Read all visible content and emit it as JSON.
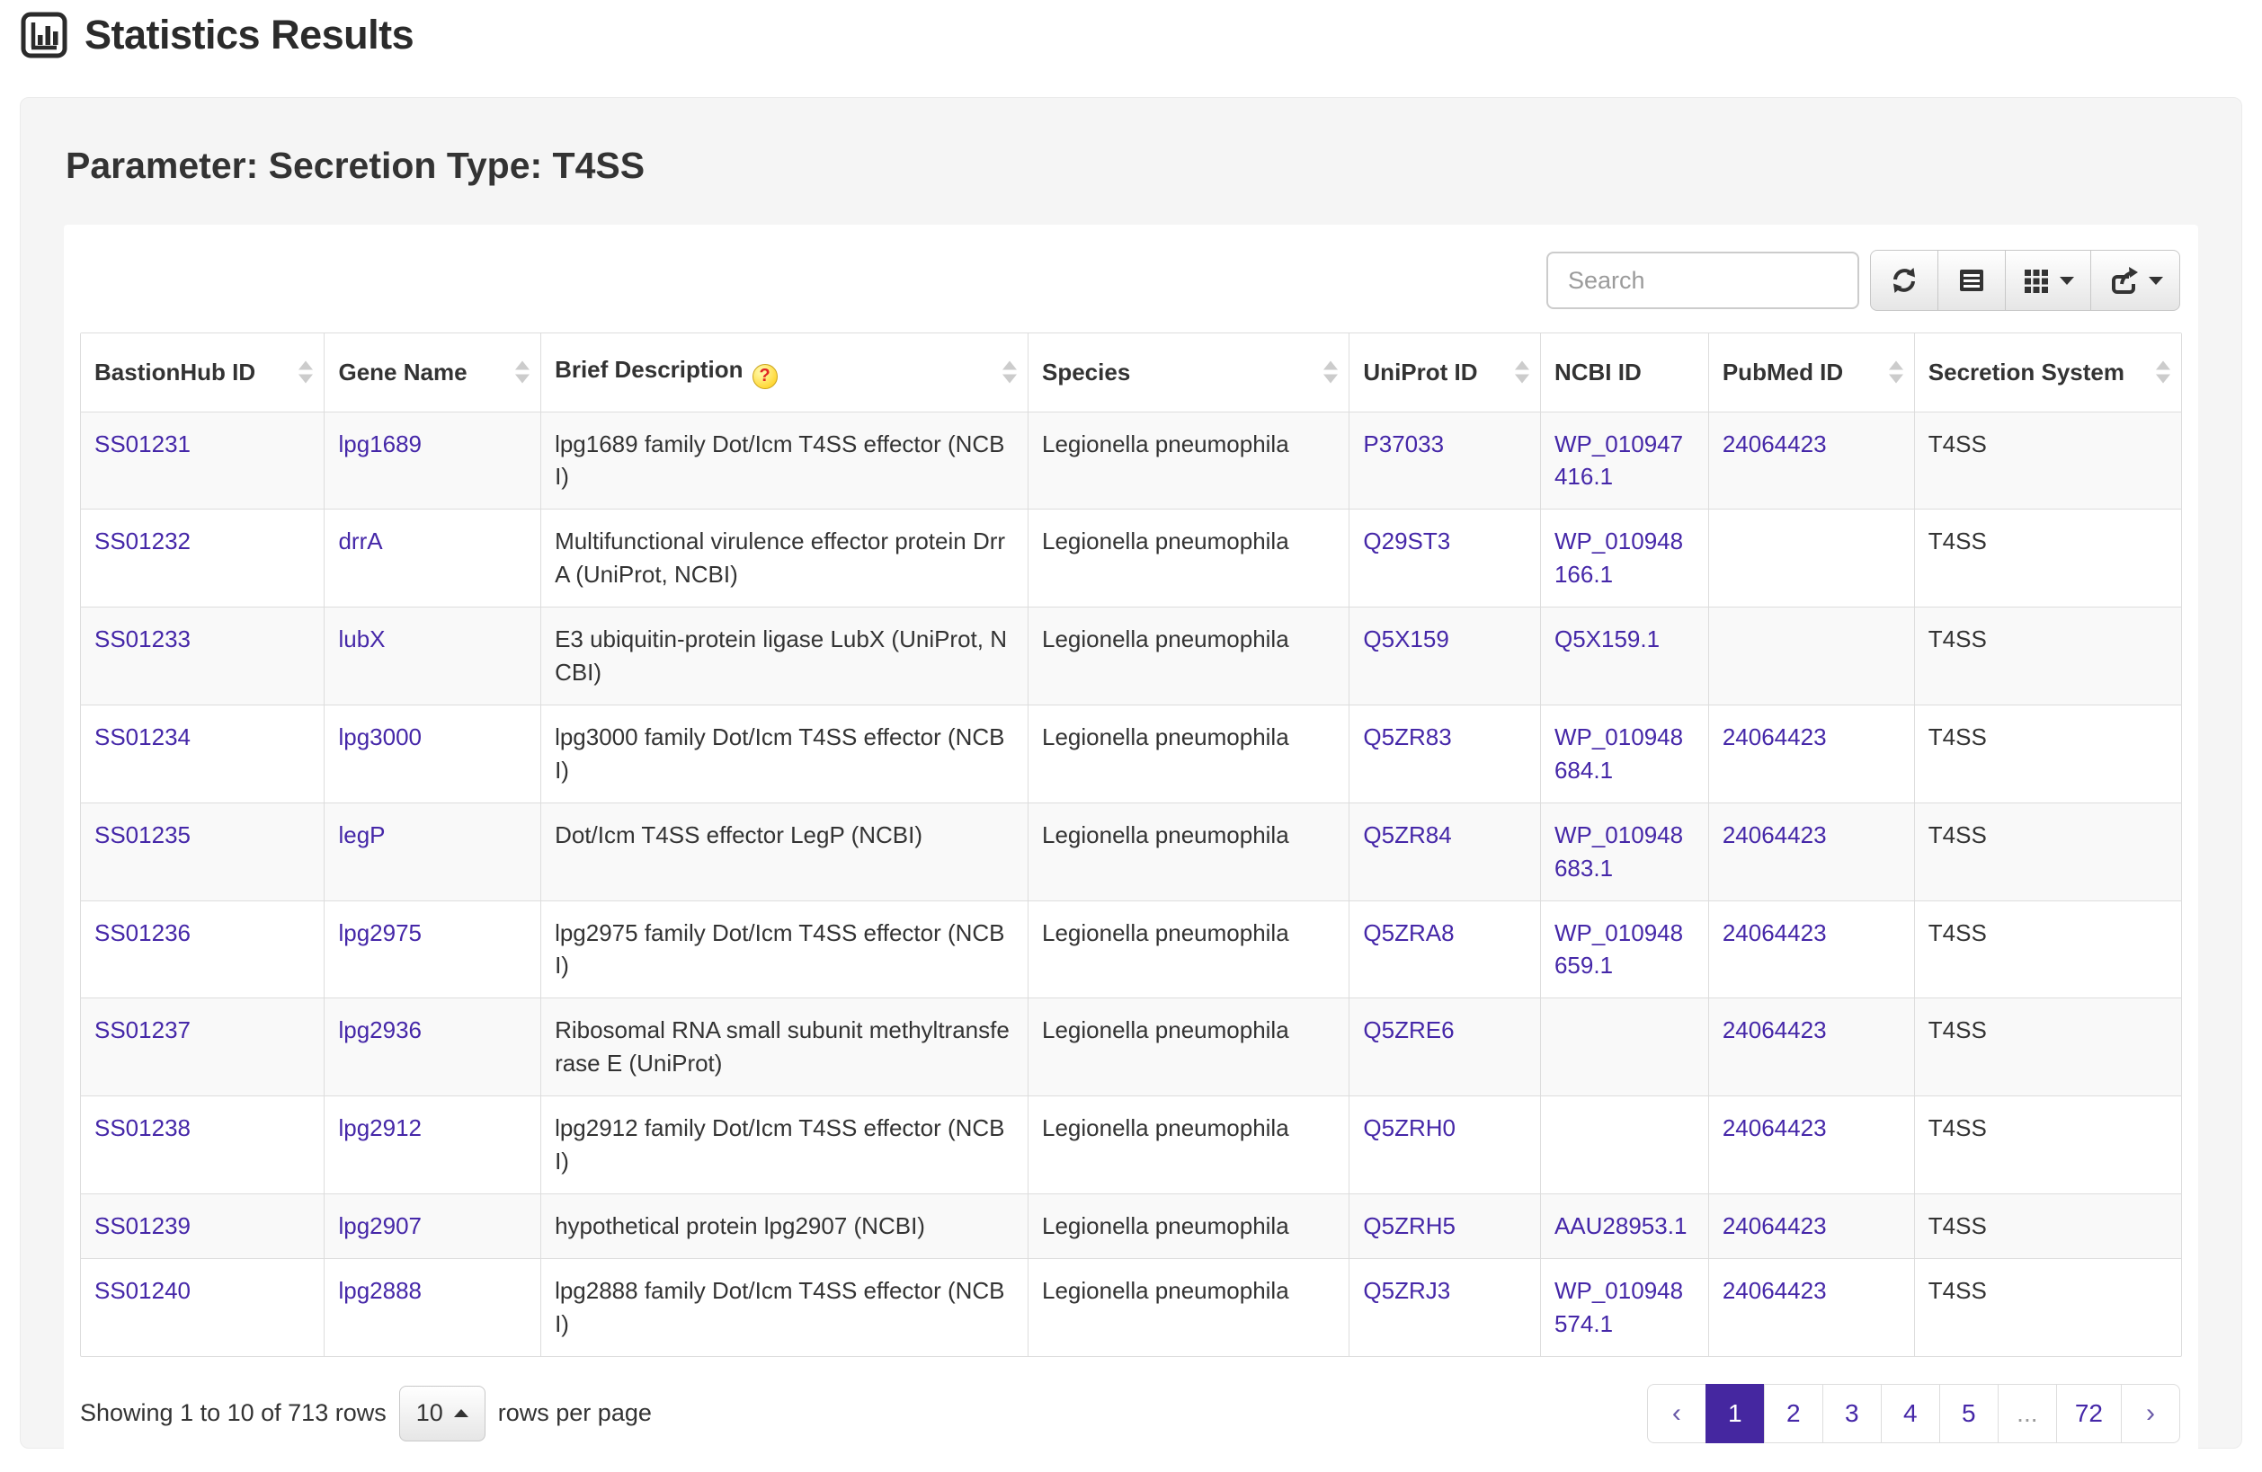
{
  "page": {
    "title": "Statistics Results"
  },
  "card": {
    "title": "Parameter: Secretion Type: T4SS"
  },
  "toolbar": {
    "search_placeholder": "Search",
    "icons": [
      "refresh-icon",
      "toggle-view-icon",
      "columns-icon",
      "export-icon"
    ]
  },
  "table": {
    "columns": [
      {
        "key": "id",
        "label": "BastionHub ID",
        "sortable": true,
        "link": true,
        "help": false
      },
      {
        "key": "gene",
        "label": "Gene Name",
        "sortable": true,
        "link": true,
        "help": false
      },
      {
        "key": "desc",
        "label": "Brief Description",
        "sortable": true,
        "link": false,
        "help": true
      },
      {
        "key": "species",
        "label": "Species",
        "sortable": true,
        "link": false,
        "help": false
      },
      {
        "key": "uniprot",
        "label": "UniProt ID",
        "sortable": true,
        "link": true,
        "help": false
      },
      {
        "key": "ncbi",
        "label": "NCBI ID",
        "sortable": false,
        "link": true,
        "help": false
      },
      {
        "key": "pubmed",
        "label": "PubMed ID",
        "sortable": true,
        "link": true,
        "help": false
      },
      {
        "key": "system",
        "label": "Secretion System",
        "sortable": true,
        "link": false,
        "help": false
      }
    ],
    "rows": [
      {
        "id": "SS01231",
        "gene": "lpg1689",
        "desc": "lpg1689 family Dot/Icm T4SS effector (NCBI)",
        "species": "Legionella pneumophila",
        "uniprot": "P37033",
        "ncbi": "WP_010947416.1",
        "pubmed": "24064423",
        "system": "T4SS"
      },
      {
        "id": "SS01232",
        "gene": "drrA",
        "desc": "Multifunctional virulence effector protein DrrA (UniProt, NCBI)",
        "species": "Legionella pneumophila",
        "uniprot": "Q29ST3",
        "ncbi": "WP_010948166.1",
        "pubmed": "",
        "system": "T4SS"
      },
      {
        "id": "SS01233",
        "gene": "lubX",
        "desc": "E3 ubiquitin-protein ligase LubX (UniProt, NCBI)",
        "species": "Legionella pneumophila",
        "uniprot": "Q5X159",
        "ncbi": "Q5X159.1",
        "pubmed": "",
        "system": "T4SS"
      },
      {
        "id": "SS01234",
        "gene": "lpg3000",
        "desc": "lpg3000 family Dot/Icm T4SS effector (NCBI)",
        "species": "Legionella pneumophila",
        "uniprot": "Q5ZR83",
        "ncbi": "WP_010948684.1",
        "pubmed": "24064423",
        "system": "T4SS"
      },
      {
        "id": "SS01235",
        "gene": "legP",
        "desc": "Dot/Icm T4SS effector LegP (NCBI)",
        "species": "Legionella pneumophila",
        "uniprot": "Q5ZR84",
        "ncbi": "WP_010948683.1",
        "pubmed": "24064423",
        "system": "T4SS"
      },
      {
        "id": "SS01236",
        "gene": "lpg2975",
        "desc": "lpg2975 family Dot/Icm T4SS effector (NCBI)",
        "species": "Legionella pneumophila",
        "uniprot": "Q5ZRA8",
        "ncbi": "WP_010948659.1",
        "pubmed": "24064423",
        "system": "T4SS"
      },
      {
        "id": "SS01237",
        "gene": "lpg2936",
        "desc": "Ribosomal RNA small subunit methyltransferase E (UniProt)",
        "species": "Legionella pneumophila",
        "uniprot": "Q5ZRE6",
        "ncbi": "",
        "pubmed": "24064423",
        "system": "T4SS"
      },
      {
        "id": "SS01238",
        "gene": "lpg2912",
        "desc": "lpg2912 family Dot/Icm T4SS effector (NCBI)",
        "species": "Legionella pneumophila",
        "uniprot": "Q5ZRH0",
        "ncbi": "",
        "pubmed": "24064423",
        "system": "T4SS"
      },
      {
        "id": "SS01239",
        "gene": "lpg2907",
        "desc": "hypothetical protein lpg2907 (NCBI)",
        "species": "Legionella pneumophila",
        "uniprot": "Q5ZRH5",
        "ncbi": "AAU28953.1",
        "pubmed": "24064423",
        "system": "T4SS"
      },
      {
        "id": "SS01240",
        "gene": "lpg2888",
        "desc": "lpg2888 family Dot/Icm T4SS effector (NCBI)",
        "species": "Legionella pneumophila",
        "uniprot": "Q5ZRJ3",
        "ncbi": "WP_010948574.1",
        "pubmed": "24064423",
        "system": "T4SS"
      }
    ],
    "help_icon_glyph": "?"
  },
  "footer": {
    "showing_text": "Showing 1 to 10 of 713 rows",
    "page_size": "10",
    "rows_per_page_label": "rows per page",
    "pagination": {
      "prev_label": "‹",
      "next_label": "›",
      "pages": [
        {
          "label": "1",
          "active": true
        },
        {
          "label": "2"
        },
        {
          "label": "3"
        },
        {
          "label": "4"
        },
        {
          "label": "5"
        },
        {
          "label": "...",
          "ellipsis": true
        },
        {
          "label": "72"
        }
      ]
    }
  },
  "colors": {
    "link": "#4527a8",
    "active_page_bg": "#4527a0",
    "card_bg": "#f5f5f5",
    "stripe_bg": "#f9f9f9",
    "border": "#dddddd"
  }
}
